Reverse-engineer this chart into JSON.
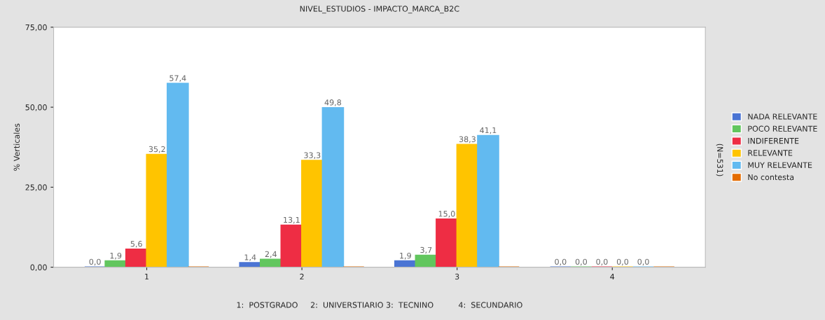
{
  "chart_data": {
    "type": "bar",
    "title": "NIVEL_ESTUDIOS - IMPACTO_MARCA_B2C",
    "ylabel": "% Verticales",
    "categories": [
      "1",
      "2",
      "3",
      "4"
    ],
    "series": [
      {
        "name": "NADA RELEVANTE",
        "color": "#4a74d4",
        "values": [
          0.0,
          1.4,
          1.9,
          0.0
        ],
        "value_labels": [
          "0,0",
          "1,4",
          "1,9",
          "0,0"
        ]
      },
      {
        "name": "POCO RELEVANTE",
        "color": "#62c65e",
        "values": [
          1.9,
          2.4,
          3.7,
          0.0
        ],
        "value_labels": [
          "1,9",
          "2,4",
          "3,7",
          "0,0"
        ]
      },
      {
        "name": "INDIFERENTE",
        "color": "#ee2d44",
        "values": [
          5.6,
          13.1,
          15.0,
          0.0
        ],
        "value_labels": [
          "5,6",
          "13,1",
          "15,0",
          "0,0"
        ]
      },
      {
        "name": "RELEVANTE",
        "color": "#ffc400",
        "values": [
          35.2,
          33.3,
          38.3,
          0.0
        ],
        "value_labels": [
          "35,2",
          "33,3",
          "38,3",
          "0,0"
        ]
      },
      {
        "name": "MUY RELEVANTE",
        "color": "#62baf0",
        "values": [
          57.4,
          49.8,
          41.1,
          0.0
        ],
        "value_labels": [
          "57,4",
          "49,8",
          "41,1",
          "0,0"
        ]
      },
      {
        "name": "No contesta",
        "color": "#e46c00",
        "values": [
          0.0,
          0.0,
          0.0,
          0.0
        ],
        "value_labels": [
          null,
          null,
          null,
          null
        ]
      }
    ],
    "ylim": [
      0,
      75
    ],
    "yticks": [
      {
        "value": 0,
        "label": "0,00"
      },
      {
        "value": 25,
        "label": "25,00"
      },
      {
        "value": 50,
        "label": "50,00"
      },
      {
        "value": 75,
        "label": "75,00"
      }
    ],
    "grid": false,
    "legend": "right",
    "annotations": [
      "(N=531)",
      "1:  POSTGRADO     2:  UNIVERSTIARIO 3:  TECNINO          4:  SECUNDARIO"
    ]
  }
}
